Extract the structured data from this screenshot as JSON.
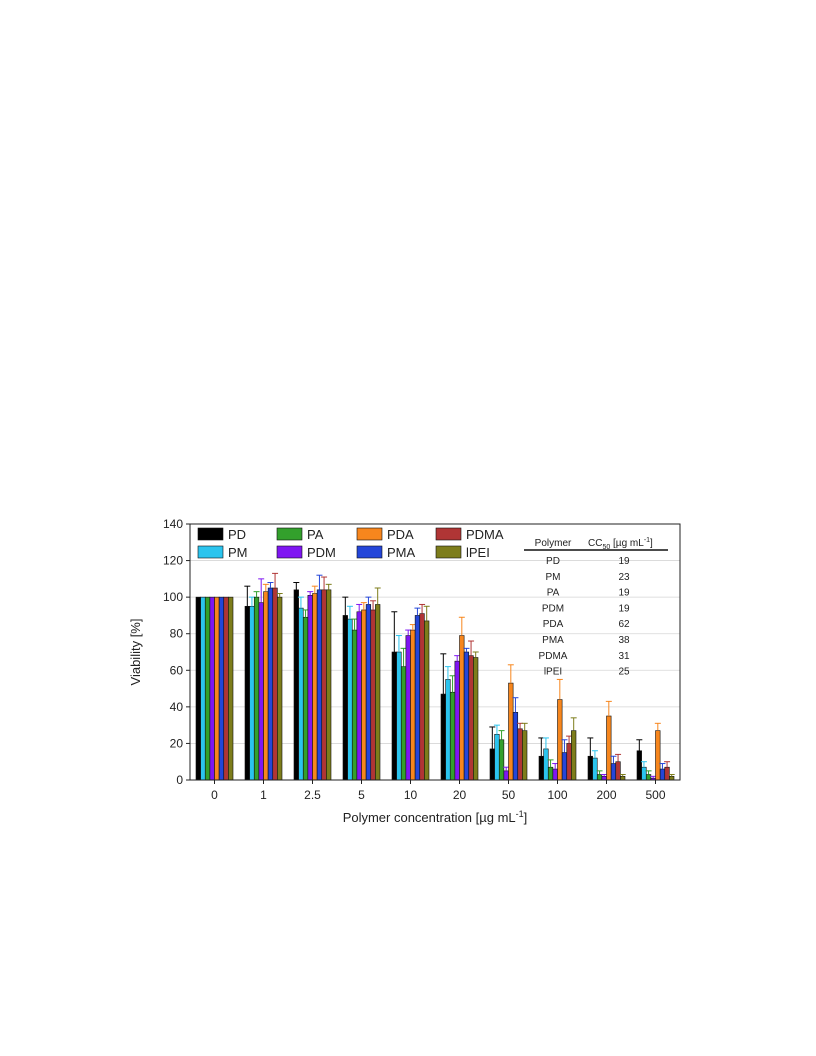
{
  "chart_data": {
    "type": "bar",
    "xlabel_main": "Polymer concentration [µg mL",
    "xlabel_sup": "-1",
    "xlabel_end": "]",
    "ylabel": "Viability [%]",
    "ylim": [
      0,
      140
    ],
    "yticks": [
      0,
      20,
      40,
      60,
      80,
      100,
      120,
      140
    ],
    "grid": "horizontal",
    "legend_position": "top-left",
    "categories": [
      "0",
      "1",
      "2.5",
      "5",
      "10",
      "20",
      "50",
      "100",
      "200",
      "500"
    ],
    "series": [
      {
        "name": "PD",
        "color": "#000000",
        "values": [
          100,
          95,
          104,
          90,
          70,
          47,
          17,
          13,
          13,
          16
        ],
        "errors": [
          0,
          11,
          4,
          10,
          22,
          22,
          12,
          10,
          10,
          6
        ]
      },
      {
        "name": "PM",
        "color": "#2bc4ee",
        "values": [
          100,
          95,
          94,
          88,
          70,
          55,
          25,
          17,
          12,
          7
        ],
        "errors": [
          0,
          5,
          6,
          7,
          9,
          7,
          5,
          6,
          4,
          3
        ]
      },
      {
        "name": "PA",
        "color": "#33a02c",
        "values": [
          100,
          100,
          89,
          82,
          62,
          48,
          22,
          7,
          3,
          3
        ],
        "errors": [
          0,
          3,
          4,
          6,
          10,
          9,
          5,
          4,
          2,
          2
        ]
      },
      {
        "name": "PDM",
        "color": "#7f16f2",
        "values": [
          100,
          97,
          101,
          92,
          79,
          65,
          5,
          6,
          2,
          1
        ],
        "errors": [
          0,
          13,
          2,
          4,
          3,
          3,
          2,
          3,
          1,
          1
        ]
      },
      {
        "name": "PDA",
        "color": "#f7861d",
        "values": [
          100,
          103,
          102,
          93,
          82,
          79,
          53,
          44,
          35,
          27
        ],
        "errors": [
          0,
          4,
          4,
          4,
          3,
          10,
          10,
          11,
          8,
          4
        ]
      },
      {
        "name": "PMA",
        "color": "#2446d9",
        "values": [
          100,
          105,
          104,
          96,
          90,
          70,
          37,
          15,
          9,
          6
        ],
        "errors": [
          0,
          3,
          8,
          4,
          4,
          2,
          8,
          7,
          4,
          3
        ]
      },
      {
        "name": "PDMA",
        "color": "#b03535",
        "values": [
          100,
          105,
          104,
          93,
          91,
          68,
          28,
          20,
          10,
          7
        ],
        "errors": [
          0,
          8,
          7,
          5,
          5,
          8,
          3,
          4,
          4,
          3
        ]
      },
      {
        "name": "lPEI",
        "color": "#7d7d1b",
        "values": [
          100,
          100,
          104,
          96,
          87,
          67,
          27,
          27,
          2,
          2
        ],
        "errors": [
          0,
          2,
          3,
          9,
          8,
          3,
          4,
          7,
          1,
          1
        ]
      }
    ],
    "legend_order": [
      "PD",
      "PA",
      "PDA",
      "PDMA",
      "PM",
      "PDM",
      "PMA",
      "lPEI"
    ],
    "inset_table": {
      "header_polymer": "Polymer",
      "header_cc_main": "CC",
      "header_cc_sub": "50",
      "header_cc_unit": " [µg mL",
      "header_cc_sup": "-1",
      "header_cc_end": "]",
      "rows": [
        {
          "polymer": "PD",
          "cc50": "19"
        },
        {
          "polymer": "PM",
          "cc50": "23"
        },
        {
          "polymer": "PA",
          "cc50": "19"
        },
        {
          "polymer": "PDM",
          "cc50": "19"
        },
        {
          "polymer": "PDA",
          "cc50": "62"
        },
        {
          "polymer": "PMA",
          "cc50": "38"
        },
        {
          "polymer": "PDMA",
          "cc50": "31"
        },
        {
          "polymer": "lPEI",
          "cc50": "25"
        }
      ]
    }
  }
}
